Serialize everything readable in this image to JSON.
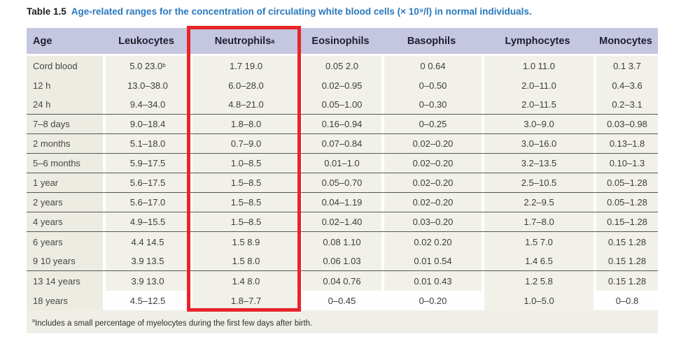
{
  "title": {
    "label": "Table 1.5",
    "caption": "Age-related ranges for the concentration of circulating white blood cells (× 10⁹/l) in normal individuals."
  },
  "table": {
    "columns": [
      "Age",
      "Leukocytes",
      "Neutrophils",
      "Eosinophils",
      "Basophils",
      "Lymphocytes",
      "Monocytes"
    ],
    "header_sup": "a",
    "rows": [
      {
        "age": "Cord blood",
        "leukocytes": "5.0 23.0",
        "leukocytes_sup": "b",
        "neutrophils": "1.7 19.0",
        "eosinophils": "0.05 2.0",
        "basophils": "0 0.64",
        "lymphocytes": "1.0 11.0",
        "monocytes": "0.1 3.7",
        "divider_after": false
      },
      {
        "age": "12 h",
        "leukocytes": "13.0–38.0",
        "neutrophils": "6.0–28.0",
        "eosinophils": "0.02–0.95",
        "basophils": "0–0.50",
        "lymphocytes": "2.0–11.0",
        "monocytes": "0.4–3.6",
        "divider_after": false
      },
      {
        "age": "24 h",
        "leukocytes": "9.4–34.0",
        "neutrophils": "4.8–21.0",
        "eosinophils": "0.05–1.00",
        "basophils": "0–0.30",
        "lymphocytes": "2.0–11.5",
        "monocytes": "0.2–3.1",
        "divider_after": true
      },
      {
        "age": "7–8 days",
        "leukocytes": "9.0–18.4",
        "neutrophils": "1.8–8.0",
        "eosinophils": "0.16–0.94",
        "basophils": "0–0.25",
        "lymphocytes": "3.0–9.0",
        "monocytes": "0.03–0.98",
        "divider_after": true
      },
      {
        "age": "2 months",
        "leukocytes": "5.1–18.0",
        "neutrophils": "0.7–9.0",
        "eosinophils": "0.07–0.84",
        "basophils": "0.02–0.20",
        "lymphocytes": "3.0–16.0",
        "monocytes": "0.13–1.8",
        "divider_after": true
      },
      {
        "age": "5–6 months",
        "leukocytes": "5.9–17.5",
        "neutrophils": "1.0–8.5",
        "eosinophils": "0.01–1.0",
        "basophils": "0.02–0.20",
        "lymphocytes": "3.2–13.5",
        "monocytes": "0.10–1.3",
        "divider_after": true
      },
      {
        "age": "1 year",
        "leukocytes": "5.6–17.5",
        "neutrophils": "1.5–8.5",
        "eosinophils": "0.05–0.70",
        "basophils": "0.02–0.20",
        "lymphocytes": "2.5–10.5",
        "monocytes": "0.05–1.28",
        "divider_after": true
      },
      {
        "age": "2 years",
        "leukocytes": "5.6–17.0",
        "neutrophils": "1.5–8.5",
        "eosinophils": "0.04–1.19",
        "basophils": "0.02–0.20",
        "lymphocytes": "2.2–9.5",
        "monocytes": "0.05–1.28",
        "divider_after": true
      },
      {
        "age": "4 years",
        "leukocytes": "4.9–15.5",
        "neutrophils": "1.5–8.5",
        "eosinophils": "0.02–1.40",
        "basophils": "0.03–0.20",
        "lymphocytes": "1.7–8.0",
        "monocytes": "0.15–1.28",
        "divider_after": true
      },
      {
        "age": "6 years",
        "leukocytes": "4.4 14.5",
        "neutrophils": "1.5 8.9",
        "eosinophils": "0.08 1.10",
        "basophils": "0.02 0.20",
        "lymphocytes": "1.5 7.0",
        "monocytes": "0.15 1.28",
        "divider_after": false
      },
      {
        "age": "9 10 years",
        "leukocytes": "3.9 13.5",
        "neutrophils": "1.5 8.0",
        "eosinophils": "0.06 1.03",
        "basophils": "0.01 0.54",
        "lymphocytes": "1.4 6.5",
        "monocytes": "0.15 1.28",
        "divider_after": true
      },
      {
        "age": "13 14 years",
        "leukocytes": "3.9 13.0",
        "neutrophils": "1.4 8.0",
        "eosinophils": "0.04 0.76",
        "basophils": "0.01 0.43",
        "lymphocytes": "1.2 5.8",
        "monocytes": "0.15 1.28",
        "divider_after": false
      },
      {
        "age": "18 years",
        "leukocytes": "4.5–12.5",
        "neutrophils": "1.8–7.7",
        "eosinophils": "0–0.45",
        "basophils": "0–0.20",
        "lymphocytes": "1.0–5.0",
        "monocytes": "0–0.8",
        "divider_after": false
      }
    ]
  },
  "footnote": {
    "marker": "a",
    "text": "Includes a small percentage of myelocytes during the first few days after birth."
  },
  "highlight": {
    "column": "Neutrophils",
    "color": "#e8242a"
  },
  "colors": {
    "header_bg": "#c5c6e0",
    "body_bg": "#f2f1e9",
    "title_blue": "#2878be",
    "highlight_red": "#e8242a"
  }
}
